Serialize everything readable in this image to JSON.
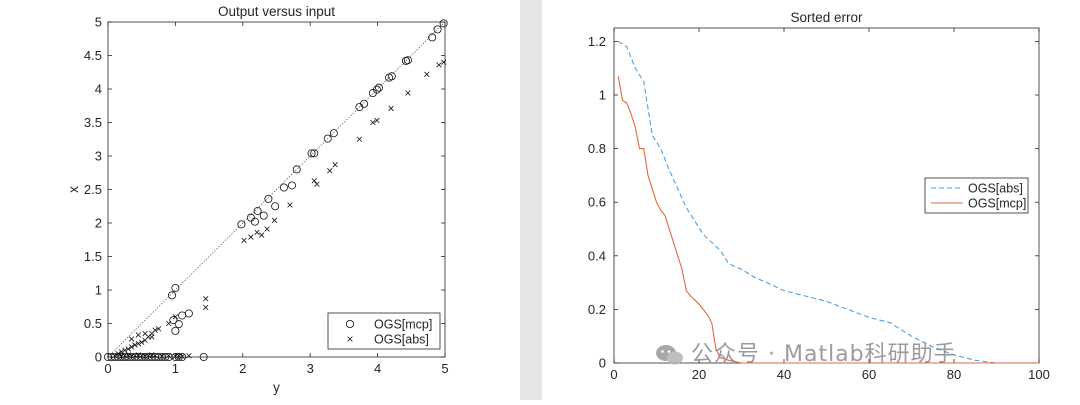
{
  "chart_data": [
    {
      "type": "scatter",
      "title": "Output versus input",
      "xlabel": "y",
      "ylabel": "x",
      "xlim": [
        0,
        5
      ],
      "ylim": [
        0,
        5
      ],
      "xticks": [
        "0",
        "1",
        "2",
        "3",
        "4",
        "5"
      ],
      "yticks": [
        "0",
        "0.5",
        "1",
        "1.5",
        "2",
        "2.5",
        "3",
        "3.5",
        "4",
        "4.5",
        "5"
      ],
      "legend_position": "bottom-right",
      "reference_line": {
        "style": "dotted",
        "from": [
          0,
          0
        ],
        "to": [
          5,
          5
        ]
      },
      "series": [
        {
          "name": "OGS[mcp]",
          "marker": "circle",
          "x": [
            0.0,
            0.05,
            0.1,
            0.15,
            0.2,
            0.25,
            0.3,
            0.35,
            0.4,
            0.45,
            0.5,
            0.55,
            0.6,
            0.65,
            0.7,
            0.75,
            0.8,
            0.85,
            0.9,
            1.0,
            1.05,
            1.1,
            1.42,
            0.95,
            1.0,
            1.1,
            1.05,
            1.2,
            1.0,
            0.97,
            1.98,
            2.12,
            2.22,
            2.18,
            2.31,
            2.48,
            2.38,
            2.61,
            2.73,
            2.8,
            3.02,
            3.06,
            3.26,
            3.35,
            3.73,
            3.8,
            3.93,
            3.99,
            4.02,
            4.17,
            4.21,
            4.42,
            4.45,
            4.81,
            4.89,
            4.98
          ],
          "y": [
            0,
            0,
            0,
            0,
            0,
            0,
            0,
            0,
            0,
            0,
            0,
            0,
            0,
            0,
            0,
            0,
            0,
            0,
            0,
            0,
            0,
            0,
            0,
            0.92,
            1.03,
            0.62,
            0.49,
            0.65,
            0.39,
            0.55,
            1.98,
            2.08,
            2.18,
            2.02,
            2.11,
            2.25,
            2.36,
            2.53,
            2.56,
            2.8,
            3.04,
            3.04,
            3.26,
            3.34,
            3.73,
            3.78,
            3.94,
            3.99,
            4.02,
            4.17,
            4.19,
            4.42,
            4.43,
            4.77,
            4.89,
            4.98
          ]
        },
        {
          "name": "OGS[abs]",
          "marker": "x",
          "x": [
            0.1,
            0.15,
            0.2,
            0.25,
            0.3,
            0.35,
            0.4,
            0.45,
            0.5,
            0.55,
            0.6,
            0.65,
            0.7,
            0.2,
            0.25,
            0.3,
            0.35,
            0.4,
            0.45,
            0.5,
            0.55,
            0.6,
            0.65,
            0.7,
            0.8,
            0.9,
            1.0,
            1.05,
            1.1,
            1.2,
            1.45,
            1.45,
            0.9,
            1.0,
            0.35,
            0.45,
            0.55,
            0.65,
            0.75,
            2.02,
            2.12,
            2.21,
            2.28,
            2.36,
            2.47,
            2.7,
            3.06,
            3.1,
            3.29,
            3.37,
            3.73,
            3.93,
            3.99,
            4.2,
            4.45,
            4.73,
            4.91,
            4.98
          ],
          "y": [
            0.02,
            0.05,
            0.08,
            0.1,
            0.12,
            0.15,
            0.18,
            0.2,
            0.22,
            0.25,
            0.3,
            0.35,
            0.4,
            0.01,
            0.02,
            0.03,
            0.01,
            0.02,
            0.03,
            0.02,
            0.01,
            0.02,
            0.03,
            0.02,
            0.01,
            0.02,
            0.01,
            0.02,
            0.01,
            0.02,
            0.87,
            0.74,
            0.5,
            0.6,
            0.27,
            0.33,
            0.35,
            0.3,
            0.42,
            1.74,
            1.79,
            1.86,
            1.82,
            1.91,
            2.04,
            2.27,
            2.63,
            2.58,
            2.78,
            2.87,
            3.25,
            3.5,
            3.53,
            3.71,
            3.94,
            4.22,
            4.36,
            4.4
          ]
        }
      ]
    },
    {
      "type": "line",
      "title": "Sorted error",
      "xlabel": "",
      "ylabel": "",
      "xlim": [
        0,
        100
      ],
      "ylim": [
        0,
        1.25
      ],
      "xticks": [
        "0",
        "20",
        "40",
        "60",
        "80",
        "100"
      ],
      "yticks": [
        "0",
        "0.2",
        "0.4",
        "0.6",
        "0.8",
        "1",
        "1.2"
      ],
      "legend_position": "right",
      "series": [
        {
          "name": "OGS[abs]",
          "style": "dashed",
          "color": "#4f9fdc",
          "x": [
            1,
            3,
            5,
            7,
            9,
            11,
            13,
            15,
            17,
            19,
            21,
            23,
            25,
            27,
            30,
            33,
            36,
            40,
            45,
            50,
            55,
            60,
            65,
            70,
            75,
            80,
            85,
            90,
            95,
            100
          ],
          "y": [
            1.2,
            1.18,
            1.1,
            1.05,
            0.85,
            0.8,
            0.72,
            0.65,
            0.58,
            0.53,
            0.48,
            0.45,
            0.42,
            0.37,
            0.35,
            0.32,
            0.3,
            0.27,
            0.25,
            0.23,
            0.2,
            0.17,
            0.15,
            0.1,
            0.06,
            0.03,
            0.01,
            0.0,
            0.0,
            0.0
          ]
        },
        {
          "name": "OGS[mcp]",
          "style": "solid",
          "color": "#e4683f",
          "x": [
            1,
            2,
            3,
            4,
            5,
            6,
            7,
            8,
            9,
            10,
            11,
            12,
            13,
            14,
            15,
            16,
            17,
            18,
            20,
            22,
            23,
            24,
            25,
            27,
            30,
            40,
            60,
            80,
            100
          ],
          "y": [
            1.07,
            0.98,
            0.97,
            0.93,
            0.88,
            0.8,
            0.8,
            0.7,
            0.65,
            0.6,
            0.57,
            0.55,
            0.5,
            0.45,
            0.4,
            0.35,
            0.27,
            0.25,
            0.22,
            0.18,
            0.15,
            0.05,
            0.02,
            0.01,
            0.0,
            0.0,
            0.0,
            0.0,
            0.0
          ]
        }
      ]
    }
  ],
  "watermark": {
    "text": "公众号 · Matlab科研助手",
    "icon": "wechat-icon"
  }
}
